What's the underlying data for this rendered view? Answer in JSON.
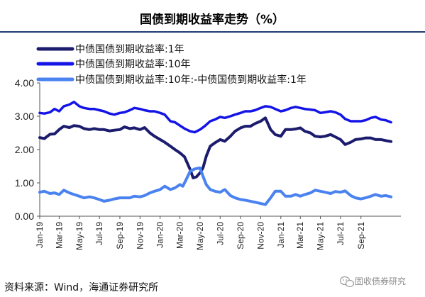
{
  "title": "国债到期收益率走势（%）",
  "source": "资料来源：Wind，海通证券研究所",
  "watermark": "固收债券研究",
  "colors": {
    "series_1y": "#1c1c6e",
    "series_10y": "#1414e6",
    "series_spread": "#4a82f0",
    "title_rule": "#1f3b73",
    "axis": "#555555"
  },
  "chart_data": {
    "type": "line",
    "ylim": [
      0,
      4
    ],
    "yticks": [
      "0.00",
      "1.00",
      "2.00",
      "3.00",
      "4.00"
    ],
    "xlim": [
      "2019-01-01",
      "2021-12-31"
    ],
    "xticks": [
      {
        "date": "2019-01-01",
        "label": "Jan-19"
      },
      {
        "date": "2019-03-01",
        "label": "Mar-19"
      },
      {
        "date": "2019-05-01",
        "label": "May-19"
      },
      {
        "date": "2019-07-01",
        "label": "Jul-19"
      },
      {
        "date": "2019-09-01",
        "label": "Sep-19"
      },
      {
        "date": "2019-11-01",
        "label": "Nov-19"
      },
      {
        "date": "2020-01-01",
        "label": "Jan-20"
      },
      {
        "date": "2020-03-01",
        "label": "Mar-20"
      },
      {
        "date": "2020-05-01",
        "label": "May-20"
      },
      {
        "date": "2020-07-01",
        "label": "Jul-20"
      },
      {
        "date": "2020-09-01",
        "label": "Sep-20"
      },
      {
        "date": "2020-11-01",
        "label": "Nov-20"
      },
      {
        "date": "2021-01-01",
        "label": "Jan-21"
      },
      {
        "date": "2021-03-01",
        "label": "Mar-21"
      },
      {
        "date": "2021-05-01",
        "label": "May-21"
      },
      {
        "date": "2021-07-01",
        "label": "Jul-21"
      },
      {
        "date": "2021-09-01",
        "label": "Sep-21"
      }
    ],
    "legend_position": "top-left",
    "grid": false,
    "series": [
      {
        "name": "中债国债到期收益率:1年",
        "color": "#1c1c6e",
        "points": [
          [
            "2019-01-01",
            2.36
          ],
          [
            "2019-01-15",
            2.33
          ],
          [
            "2019-02-01",
            2.46
          ],
          [
            "2019-02-15",
            2.47
          ],
          [
            "2019-03-01",
            2.6
          ],
          [
            "2019-03-15",
            2.7
          ],
          [
            "2019-04-01",
            2.66
          ],
          [
            "2019-04-15",
            2.72
          ],
          [
            "2019-05-01",
            2.7
          ],
          [
            "2019-05-15",
            2.63
          ],
          [
            "2019-06-01",
            2.6
          ],
          [
            "2019-06-15",
            2.63
          ],
          [
            "2019-07-01",
            2.6
          ],
          [
            "2019-07-15",
            2.6
          ],
          [
            "2019-08-01",
            2.56
          ],
          [
            "2019-08-15",
            2.58
          ],
          [
            "2019-09-01",
            2.6
          ],
          [
            "2019-09-15",
            2.68
          ],
          [
            "2019-10-01",
            2.63
          ],
          [
            "2019-10-15",
            2.65
          ],
          [
            "2019-11-01",
            2.6
          ],
          [
            "2019-11-15",
            2.66
          ],
          [
            "2019-12-01",
            2.5
          ],
          [
            "2019-12-15",
            2.4
          ],
          [
            "2020-01-01",
            2.3
          ],
          [
            "2020-01-15",
            2.22
          ],
          [
            "2020-02-01",
            2.1
          ],
          [
            "2020-02-15",
            2.0
          ],
          [
            "2020-03-01",
            1.9
          ],
          [
            "2020-03-15",
            1.78
          ],
          [
            "2020-04-01",
            1.4
          ],
          [
            "2020-04-10",
            1.15
          ],
          [
            "2020-04-20",
            1.18
          ],
          [
            "2020-05-01",
            1.3
          ],
          [
            "2020-05-10",
            1.45
          ],
          [
            "2020-05-20",
            1.8
          ],
          [
            "2020-06-01",
            2.1
          ],
          [
            "2020-06-15",
            2.2
          ],
          [
            "2020-07-01",
            2.3
          ],
          [
            "2020-07-15",
            2.25
          ],
          [
            "2020-08-01",
            2.4
          ],
          [
            "2020-08-15",
            2.55
          ],
          [
            "2020-09-01",
            2.65
          ],
          [
            "2020-09-15",
            2.7
          ],
          [
            "2020-10-01",
            2.7
          ],
          [
            "2020-10-15",
            2.78
          ],
          [
            "2020-11-01",
            2.85
          ],
          [
            "2020-11-15",
            2.95
          ],
          [
            "2020-12-01",
            2.6
          ],
          [
            "2020-12-15",
            2.45
          ],
          [
            "2021-01-01",
            2.4
          ],
          [
            "2021-01-15",
            2.6
          ],
          [
            "2021-02-01",
            2.6
          ],
          [
            "2021-02-15",
            2.62
          ],
          [
            "2021-03-01",
            2.65
          ],
          [
            "2021-03-15",
            2.55
          ],
          [
            "2021-04-01",
            2.5
          ],
          [
            "2021-04-15",
            2.4
          ],
          [
            "2021-05-01",
            2.38
          ],
          [
            "2021-05-15",
            2.4
          ],
          [
            "2021-06-01",
            2.45
          ],
          [
            "2021-06-15",
            2.38
          ],
          [
            "2021-07-01",
            2.3
          ],
          [
            "2021-07-15",
            2.15
          ],
          [
            "2021-08-01",
            2.22
          ],
          [
            "2021-08-15",
            2.3
          ],
          [
            "2021-09-01",
            2.32
          ],
          [
            "2021-09-15",
            2.35
          ],
          [
            "2021-10-01",
            2.35
          ],
          [
            "2021-10-15",
            2.3
          ],
          [
            "2021-11-01",
            2.3
          ],
          [
            "2021-11-15",
            2.27
          ],
          [
            "2021-12-01",
            2.24
          ]
        ]
      },
      {
        "name": "中债国债到期收益率:10年",
        "color": "#1414e6",
        "points": [
          [
            "2019-01-01",
            3.1
          ],
          [
            "2019-01-15",
            3.08
          ],
          [
            "2019-02-01",
            3.12
          ],
          [
            "2019-02-15",
            3.22
          ],
          [
            "2019-03-01",
            3.15
          ],
          [
            "2019-03-15",
            3.3
          ],
          [
            "2019-04-01",
            3.35
          ],
          [
            "2019-04-15",
            3.43
          ],
          [
            "2019-05-01",
            3.3
          ],
          [
            "2019-05-15",
            3.25
          ],
          [
            "2019-06-01",
            3.22
          ],
          [
            "2019-06-15",
            3.22
          ],
          [
            "2019-07-01",
            3.18
          ],
          [
            "2019-07-15",
            3.15
          ],
          [
            "2019-08-01",
            3.08
          ],
          [
            "2019-08-15",
            3.05
          ],
          [
            "2019-09-01",
            3.1
          ],
          [
            "2019-09-15",
            3.12
          ],
          [
            "2019-10-01",
            3.18
          ],
          [
            "2019-10-15",
            3.25
          ],
          [
            "2019-11-01",
            3.22
          ],
          [
            "2019-11-15",
            3.18
          ],
          [
            "2019-12-01",
            3.15
          ],
          [
            "2019-12-15",
            3.15
          ],
          [
            "2020-01-01",
            3.1
          ],
          [
            "2020-01-15",
            3.05
          ],
          [
            "2020-02-01",
            2.85
          ],
          [
            "2020-02-15",
            2.82
          ],
          [
            "2020-03-01",
            2.72
          ],
          [
            "2020-03-15",
            2.63
          ],
          [
            "2020-04-01",
            2.55
          ],
          [
            "2020-04-15",
            2.52
          ],
          [
            "2020-05-01",
            2.6
          ],
          [
            "2020-05-15",
            2.7
          ],
          [
            "2020-06-01",
            2.85
          ],
          [
            "2020-06-15",
            2.9
          ],
          [
            "2020-07-01",
            2.98
          ],
          [
            "2020-07-15",
            2.95
          ],
          [
            "2020-08-01",
            3.0
          ],
          [
            "2020-08-15",
            3.05
          ],
          [
            "2020-09-01",
            3.1
          ],
          [
            "2020-09-15",
            3.15
          ],
          [
            "2020-10-01",
            3.15
          ],
          [
            "2020-10-15",
            3.18
          ],
          [
            "2020-11-01",
            3.25
          ],
          [
            "2020-11-15",
            3.3
          ],
          [
            "2020-12-01",
            3.28
          ],
          [
            "2020-12-15",
            3.22
          ],
          [
            "2021-01-01",
            3.15
          ],
          [
            "2021-01-15",
            3.18
          ],
          [
            "2021-02-01",
            3.25
          ],
          [
            "2021-02-15",
            3.28
          ],
          [
            "2021-03-01",
            3.25
          ],
          [
            "2021-03-15",
            3.22
          ],
          [
            "2021-04-01",
            3.2
          ],
          [
            "2021-04-15",
            3.18
          ],
          [
            "2021-05-01",
            3.1
          ],
          [
            "2021-05-15",
            3.12
          ],
          [
            "2021-06-01",
            3.15
          ],
          [
            "2021-06-15",
            3.12
          ],
          [
            "2021-07-01",
            3.05
          ],
          [
            "2021-07-15",
            2.92
          ],
          [
            "2021-08-01",
            2.85
          ],
          [
            "2021-08-15",
            2.85
          ],
          [
            "2021-09-01",
            2.85
          ],
          [
            "2021-09-15",
            2.88
          ],
          [
            "2021-10-01",
            2.95
          ],
          [
            "2021-10-15",
            2.98
          ],
          [
            "2021-11-01",
            2.9
          ],
          [
            "2021-11-15",
            2.88
          ],
          [
            "2021-12-01",
            2.82
          ]
        ]
      },
      {
        "name": "中债国债到期收益率:10年:-中债国债到期收益率:1年",
        "color": "#4a82f0",
        "points": [
          [
            "2019-01-01",
            0.72
          ],
          [
            "2019-01-15",
            0.75
          ],
          [
            "2019-02-01",
            0.68
          ],
          [
            "2019-02-15",
            0.7
          ],
          [
            "2019-03-01",
            0.65
          ],
          [
            "2019-03-15",
            0.78
          ],
          [
            "2019-04-01",
            0.7
          ],
          [
            "2019-04-15",
            0.65
          ],
          [
            "2019-05-01",
            0.6
          ],
          [
            "2019-05-15",
            0.55
          ],
          [
            "2019-06-01",
            0.58
          ],
          [
            "2019-06-15",
            0.55
          ],
          [
            "2019-07-01",
            0.5
          ],
          [
            "2019-07-15",
            0.45
          ],
          [
            "2019-08-01",
            0.48
          ],
          [
            "2019-08-15",
            0.52
          ],
          [
            "2019-09-01",
            0.55
          ],
          [
            "2019-09-15",
            0.55
          ],
          [
            "2019-10-01",
            0.55
          ],
          [
            "2019-10-15",
            0.6
          ],
          [
            "2019-11-01",
            0.58
          ],
          [
            "2019-11-15",
            0.62
          ],
          [
            "2019-12-01",
            0.7
          ],
          [
            "2019-12-15",
            0.75
          ],
          [
            "2020-01-01",
            0.8
          ],
          [
            "2020-01-15",
            0.9
          ],
          [
            "2020-02-01",
            0.8
          ],
          [
            "2020-02-15",
            0.85
          ],
          [
            "2020-03-01",
            0.95
          ],
          [
            "2020-03-10",
            0.9
          ],
          [
            "2020-03-20",
            1.1
          ],
          [
            "2020-04-01",
            1.35
          ],
          [
            "2020-04-15",
            1.42
          ],
          [
            "2020-05-01",
            1.45
          ],
          [
            "2020-05-10",
            1.2
          ],
          [
            "2020-05-20",
            0.95
          ],
          [
            "2020-06-01",
            0.8
          ],
          [
            "2020-06-15",
            0.75
          ],
          [
            "2020-07-01",
            0.72
          ],
          [
            "2020-07-15",
            0.8
          ],
          [
            "2020-08-01",
            0.62
          ],
          [
            "2020-08-15",
            0.55
          ],
          [
            "2020-09-01",
            0.5
          ],
          [
            "2020-09-15",
            0.48
          ],
          [
            "2020-10-01",
            0.45
          ],
          [
            "2020-10-15",
            0.42
          ],
          [
            "2020-11-01",
            0.38
          ],
          [
            "2020-11-15",
            0.35
          ],
          [
            "2020-12-01",
            0.55
          ],
          [
            "2020-12-15",
            0.75
          ],
          [
            "2021-01-01",
            0.75
          ],
          [
            "2021-01-15",
            0.6
          ],
          [
            "2021-02-01",
            0.6
          ],
          [
            "2021-02-15",
            0.65
          ],
          [
            "2021-03-01",
            0.6
          ],
          [
            "2021-03-15",
            0.65
          ],
          [
            "2021-04-01",
            0.7
          ],
          [
            "2021-04-15",
            0.78
          ],
          [
            "2021-05-01",
            0.75
          ],
          [
            "2021-05-15",
            0.72
          ],
          [
            "2021-06-01",
            0.68
          ],
          [
            "2021-06-15",
            0.74
          ],
          [
            "2021-07-01",
            0.72
          ],
          [
            "2021-07-15",
            0.76
          ],
          [
            "2021-08-01",
            0.62
          ],
          [
            "2021-08-15",
            0.55
          ],
          [
            "2021-09-01",
            0.52
          ],
          [
            "2021-09-15",
            0.55
          ],
          [
            "2021-10-01",
            0.6
          ],
          [
            "2021-10-15",
            0.65
          ],
          [
            "2021-11-01",
            0.6
          ],
          [
            "2021-11-15",
            0.62
          ],
          [
            "2021-12-01",
            0.58
          ]
        ]
      }
    ]
  }
}
